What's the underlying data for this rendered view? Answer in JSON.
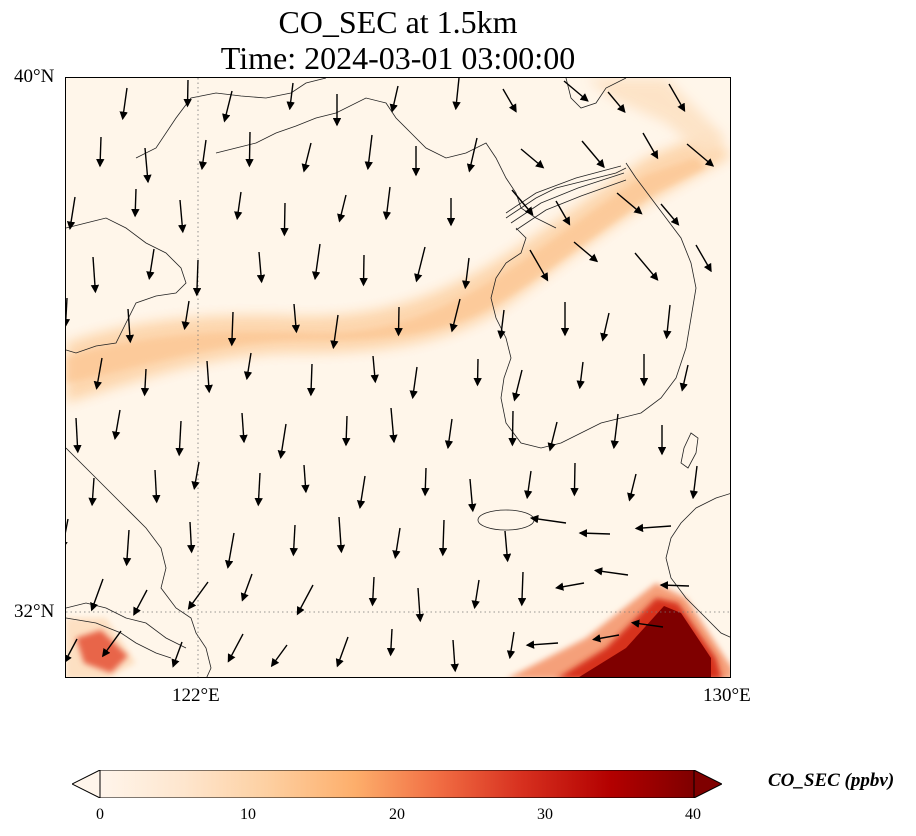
{
  "title_line1": "CO_SEC at 1.5km",
  "title_line2": "Time: 2024-03-01 03:00:00",
  "axis": {
    "lat_labels": [
      "40°N",
      "32°N"
    ],
    "lon_labels": [
      "122°E",
      "130°E"
    ]
  },
  "colorbar": {
    "label": "CO_SEC (ppbv)",
    "ticks": [
      "0",
      "10",
      "20",
      "30",
      "40"
    ],
    "colors": [
      "#fff5eb",
      "#fee6ce",
      "#fdd0a2",
      "#fdae6b",
      "#fd8d3c",
      "#e34a33",
      "#b30000",
      "#7f0000"
    ]
  },
  "map": {
    "background_color": "#fff6ea",
    "plume_color": "#fdd5ab",
    "hotspot_color": "#7f0000",
    "gridline_style": "dotted"
  }
}
